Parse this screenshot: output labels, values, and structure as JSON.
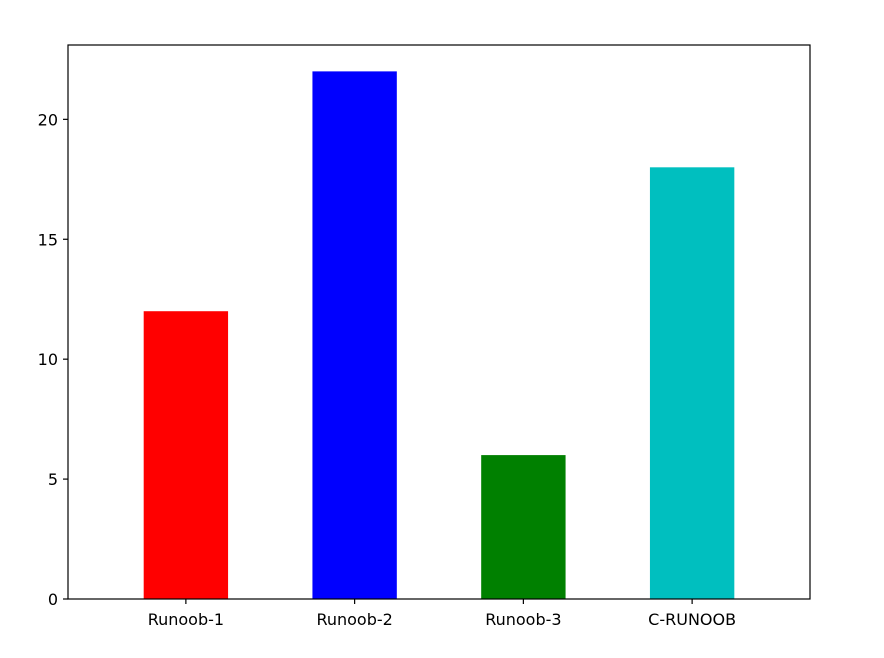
{
  "chart_data": {
    "type": "bar",
    "categories": [
      "Runoob-1",
      "Runoob-2",
      "Runoob-3",
      "C-RUNOOB"
    ],
    "values": [
      12,
      22,
      6,
      18
    ],
    "colors": [
      "#ff0000",
      "#0000ff",
      "#008000",
      "#00bfbf"
    ],
    "title": "",
    "xlabel": "",
    "ylabel": "",
    "ylim": [
      0,
      23.1
    ],
    "yticks": [
      0,
      5,
      10,
      15,
      20
    ],
    "grid": false,
    "legend": "none"
  }
}
